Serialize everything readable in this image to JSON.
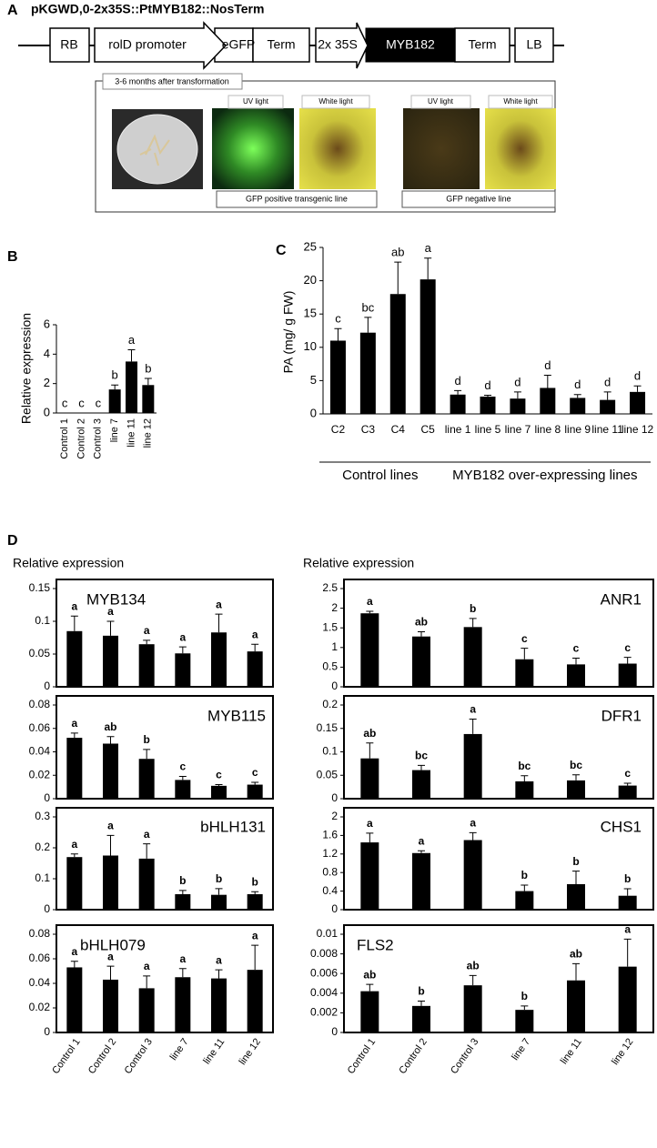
{
  "panel_a": {
    "label": "A",
    "title": "pKGWD,0-2x35S::PtMYB182::NosTerm",
    "elements": [
      "RB",
      "rolD promoter",
      "eGFP",
      "Term",
      "2x 35S",
      "MYB182",
      "Term",
      "LB"
    ],
    "inset_title": "3-6 months after transformation",
    "photo_labels": [
      "UV light",
      "White light",
      "UV light",
      "White light"
    ],
    "line_labels": [
      "GFP positive transgenic line",
      "GFP negative line"
    ]
  },
  "chart_data": [
    {
      "type": "bar",
      "panel": "B",
      "ylabel": "Relative expression",
      "color": "#000000",
      "categories": [
        "Control 1",
        "Control 2",
        "Control 3",
        "line 7",
        "line 11",
        "line 12"
      ],
      "values": [
        0,
        0,
        0,
        1.6,
        3.5,
        1.9
      ],
      "errors": [
        0,
        0,
        0,
        0.3,
        0.8,
        0.45
      ],
      "letters": [
        "c",
        "c",
        "c",
        "b",
        "a",
        "b"
      ],
      "ylim": [
        0,
        6
      ],
      "yticks": [
        0,
        2,
        4,
        6
      ]
    },
    {
      "type": "bar",
      "panel": "C",
      "ylabel": "PA (mg/ g FW)",
      "color": "#000000",
      "categories": [
        "C2",
        "C3",
        "C4",
        "C5",
        "line 1",
        "line 5",
        "line 7",
        "line 8",
        "line 9",
        "line 11",
        "line 12"
      ],
      "values": [
        11,
        12.2,
        18,
        20.2,
        2.9,
        2.6,
        2.3,
        3.9,
        2.4,
        2.1,
        3.3
      ],
      "errors": [
        1.8,
        2.3,
        4.8,
        3.2,
        0.6,
        0.2,
        1,
        1.9,
        0.5,
        1.2,
        0.9
      ],
      "letters": [
        "c",
        "bc",
        "ab",
        "a",
        "d",
        "d",
        "d",
        "d",
        "d",
        "d",
        "d"
      ],
      "groups": [
        "Control lines",
        "MYB182 over-expressing lines"
      ],
      "ylim": [
        0,
        25
      ],
      "yticks": [
        0,
        5,
        10,
        15,
        20,
        25
      ]
    },
    {
      "type": "bar",
      "panel": "D",
      "ylabel": "Relative expression",
      "title": "MYB134",
      "color": "#000000",
      "values": [
        0.085,
        0.078,
        0.065,
        0.051,
        0.083,
        0.054
      ],
      "errors": [
        0.023,
        0.022,
        0.006,
        0.01,
        0.028,
        0.011
      ],
      "letters": [
        "a",
        "a",
        "a",
        "a",
        "a",
        "a"
      ],
      "ylim": [
        0,
        0.15
      ],
      "yticks": [
        0,
        0.05,
        0.1,
        0.15
      ]
    },
    {
      "type": "bar",
      "title": "MYB115",
      "color": "#000000",
      "values": [
        0.052,
        0.047,
        0.034,
        0.016,
        0.011,
        0.012
      ],
      "errors": [
        0.004,
        0.006,
        0.008,
        0.003,
        0.001,
        0.002
      ],
      "letters": [
        "a",
        "ab",
        "b",
        "c",
        "c",
        "c"
      ],
      "ylim": [
        0,
        0.08
      ],
      "yticks": [
        0,
        0.02,
        0.04,
        0.06,
        0.08
      ]
    },
    {
      "type": "bar",
      "title": "bHLH131",
      "color": "#000000",
      "values": [
        0.17,
        0.175,
        0.165,
        0.05,
        0.048,
        0.05
      ],
      "errors": [
        0.01,
        0.065,
        0.048,
        0.012,
        0.02,
        0.008
      ],
      "letters": [
        "a",
        "a",
        "a",
        "b",
        "b",
        "b"
      ],
      "ylim": [
        0,
        0.3
      ],
      "yticks": [
        0,
        0.1,
        0.2,
        0.3
      ]
    },
    {
      "type": "bar",
      "title": "bHLH079",
      "color": "#000000",
      "categories": [
        "Control 1",
        "Control 2",
        "Control 3",
        "line 7",
        "line 11",
        "line 12"
      ],
      "values": [
        0.053,
        0.043,
        0.036,
        0.045,
        0.044,
        0.051
      ],
      "errors": [
        0.005,
        0.011,
        0.01,
        0.007,
        0.007,
        0.02
      ],
      "letters": [
        "a",
        "a",
        "a",
        "a",
        "a",
        "a"
      ],
      "ylim": [
        0,
        0.08
      ],
      "yticks": [
        0,
        0.02,
        0.04,
        0.06,
        0.08
      ]
    },
    {
      "type": "bar",
      "ylabel": "Relative expression",
      "title": "ANR1",
      "color": "#000000",
      "values": [
        1.87,
        1.28,
        1.52,
        0.7,
        0.57,
        0.59
      ],
      "errors": [
        0.05,
        0.12,
        0.22,
        0.28,
        0.16,
        0.16
      ],
      "letters": [
        "a",
        "ab",
        "b",
        "c",
        "c",
        "c"
      ],
      "ylim": [
        0,
        2.5
      ],
      "yticks": [
        0,
        0.5,
        1,
        1.5,
        2,
        2.5
      ]
    },
    {
      "type": "bar",
      "title": "DFR1",
      "color": "#000000",
      "values": [
        0.086,
        0.061,
        0.138,
        0.037,
        0.039,
        0.028
      ],
      "errors": [
        0.033,
        0.01,
        0.032,
        0.012,
        0.012,
        0.005
      ],
      "letters": [
        "ab",
        "bc",
        "a",
        "bc",
        "bc",
        "c"
      ],
      "ylim": [
        0,
        0.2
      ],
      "yticks": [
        0,
        0.05,
        0.1,
        0.15,
        0.2
      ]
    },
    {
      "type": "bar",
      "title": "CHS1",
      "color": "#000000",
      "values": [
        1.45,
        1.22,
        1.5,
        0.4,
        0.55,
        0.3
      ],
      "errors": [
        0.2,
        0.05,
        0.16,
        0.13,
        0.28,
        0.15
      ],
      "letters": [
        "a",
        "a",
        "a",
        "b",
        "b",
        "b"
      ],
      "ylim": [
        0,
        2
      ],
      "yticks": [
        0,
        0.4,
        0.8,
        1.2,
        1.6,
        2
      ]
    },
    {
      "type": "bar",
      "title": "FLS2",
      "color": "#000000",
      "categories": [
        "Control 1",
        "Control 2",
        "Control 3",
        "line 7",
        "line 11",
        "line 12"
      ],
      "values": [
        0.0042,
        0.0027,
        0.0048,
        0.0023,
        0.0053,
        0.0067
      ],
      "errors": [
        0.0007,
        0.0005,
        0.001,
        0.0004,
        0.0017,
        0.0028
      ],
      "letters": [
        "ab",
        "b",
        "ab",
        "b",
        "ab",
        "a"
      ],
      "ylim": [
        0,
        0.01
      ],
      "yticks": [
        0,
        0.002,
        0.004,
        0.006,
        0.008,
        0.01
      ]
    }
  ]
}
